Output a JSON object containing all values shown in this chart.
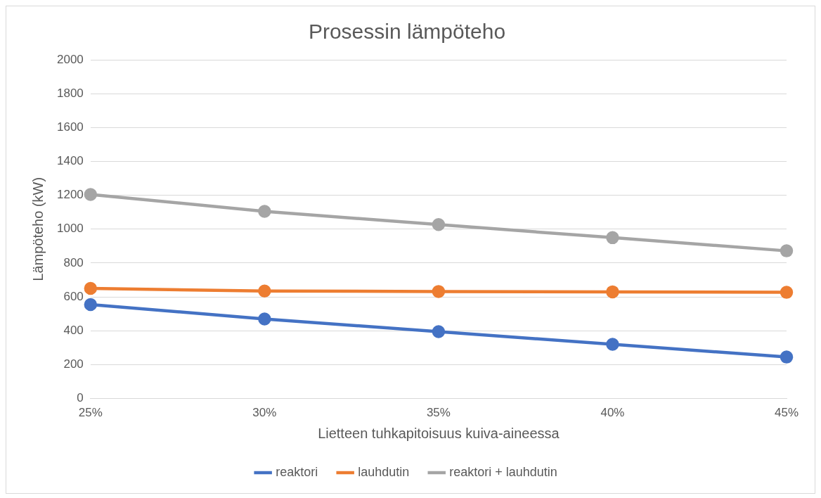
{
  "chart_data": {
    "type": "line",
    "title": "Prosessin lämpöteho",
    "xlabel": "Lietteen tuhkapitoisuus kuiva-aineessa",
    "ylabel": "Lämpöteho (kW)",
    "categories": [
      "25%",
      "30%",
      "35%",
      "40%",
      "45%"
    ],
    "series": [
      {
        "name": "reaktori",
        "color": "#4472c4",
        "values": [
          555,
          470,
          395,
          320,
          245
        ]
      },
      {
        "name": "lauhdutin",
        "color": "#ed7d31",
        "values": [
          650,
          635,
          632,
          630,
          627
        ]
      },
      {
        "name": "reaktori + lauhdutin",
        "color": "#a5a5a5",
        "values": [
          1205,
          1105,
          1027,
          950,
          872
        ]
      }
    ],
    "ylim": [
      0,
      2000
    ],
    "yticks": [
      0,
      200,
      400,
      600,
      800,
      1000,
      1200,
      1400,
      1600,
      1800,
      2000
    ],
    "grid": "y",
    "legend": "bottom",
    "marker": "circle",
    "line_style": "solid"
  }
}
